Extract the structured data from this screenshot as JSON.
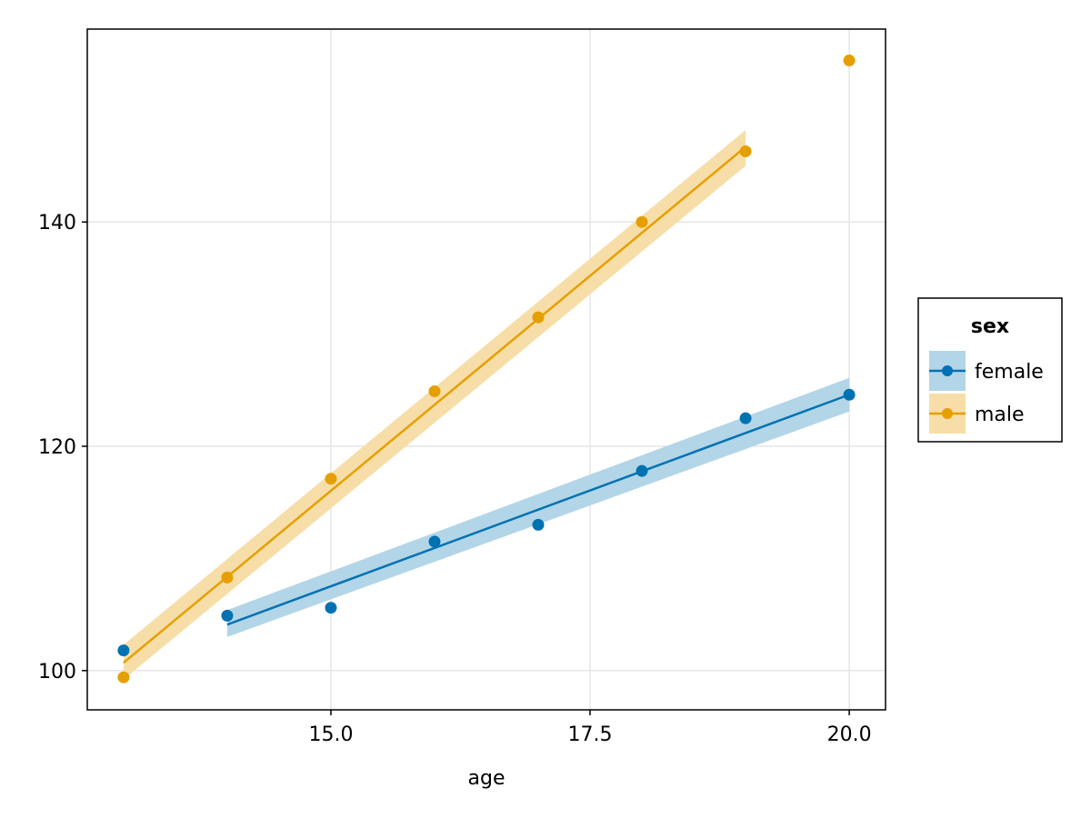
{
  "chart_data": {
    "type": "scatter",
    "xlabel": "age",
    "ylabel": "",
    "xlim": [
      12.65,
      20.35
    ],
    "ylim": [
      96.5,
      157.2
    ],
    "x_ticks": [
      15.0,
      17.5,
      20.0
    ],
    "x_tick_labels": [
      "15.0",
      "17.5",
      "20.0"
    ],
    "y_ticks": [
      100,
      120,
      140
    ],
    "y_tick_labels": [
      "100",
      "120",
      "140"
    ],
    "grid": true,
    "legend": {
      "title": "sex",
      "position": "right"
    },
    "series": [
      {
        "name": "female",
        "color": "#0072B2",
        "band_color": "#b3d5e8",
        "points": [
          {
            "x": 13,
            "y": 101.8
          },
          {
            "x": 14,
            "y": 104.9
          },
          {
            "x": 15,
            "y": 105.6
          },
          {
            "x": 16,
            "y": 111.5
          },
          {
            "x": 17,
            "y": 113.0
          },
          {
            "x": 18,
            "y": 117.8
          },
          {
            "x": 19,
            "y": 122.5
          },
          {
            "x": 20,
            "y": 124.6
          }
        ],
        "fit": [
          {
            "x": 14,
            "y": 104.1,
            "lower": 103.0,
            "upper": 105.4
          },
          {
            "x": 20,
            "y": 124.6,
            "lower": 123.1,
            "upper": 126.1
          }
        ]
      },
      {
        "name": "male",
        "color": "#E69F00",
        "band_color": "#f7dea8",
        "points": [
          {
            "x": 13,
            "y": 99.4
          },
          {
            "x": 14,
            "y": 108.3
          },
          {
            "x": 15,
            "y": 117.1
          },
          {
            "x": 16,
            "y": 124.9
          },
          {
            "x": 17,
            "y": 131.5
          },
          {
            "x": 18,
            "y": 140.0
          },
          {
            "x": 19,
            "y": 146.3
          },
          {
            "x": 20,
            "y": 154.4
          }
        ],
        "fit": [
          {
            "x": 13,
            "y": 100.7,
            "lower": 99.2,
            "upper": 102.3
          },
          {
            "x": 19,
            "y": 146.7,
            "lower": 145.0,
            "upper": 148.2
          }
        ]
      }
    ]
  }
}
